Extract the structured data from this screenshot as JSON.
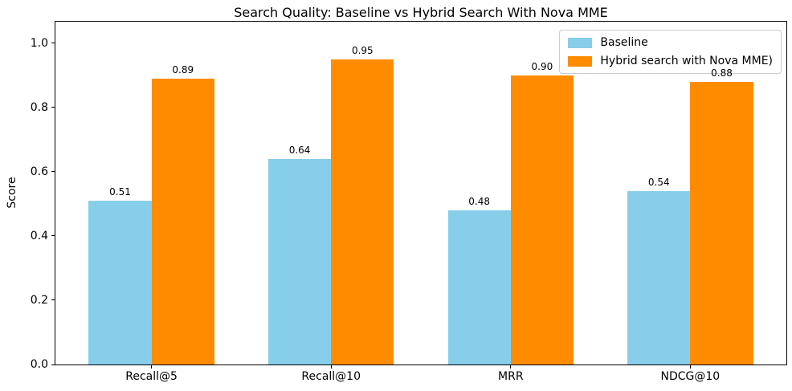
{
  "chart_data": {
    "type": "bar",
    "title": "Search Quality: Baseline vs Hybrid Search With Nova MME",
    "xlabel": "",
    "ylabel": "Score",
    "categories": [
      "Recall@5",
      "Recall@10",
      "MRR",
      "NDCG@10"
    ],
    "series": [
      {
        "name": "Baseline",
        "color": "#87CEEB",
        "values": [
          0.51,
          0.64,
          0.48,
          0.54
        ]
      },
      {
        "name": "Hybrid search with Nova MME)",
        "color": "#FF8C00",
        "values": [
          0.89,
          0.95,
          0.9,
          0.88
        ]
      }
    ],
    "value_label_format": "2-decimals",
    "yticks": [
      "0.0",
      "0.2",
      "0.4",
      "0.6",
      "0.8",
      "1.0"
    ],
    "ylim": [
      0,
      1.067
    ],
    "grid": false,
    "legend_position": "upper right",
    "bar_width_data_units": 0.35
  }
}
